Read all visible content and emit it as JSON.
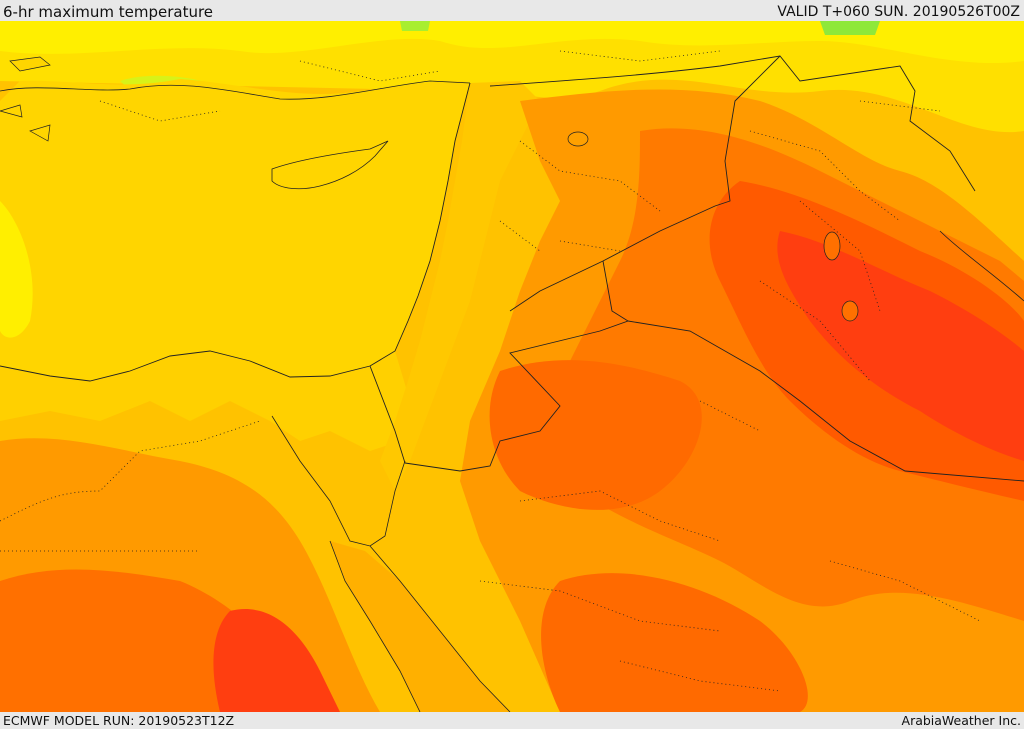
{
  "header": {
    "title": "6-hr maximum temperature",
    "valid": "VALID T+060 SUN. 20190526T00Z"
  },
  "footer": {
    "model_run": "ECMWF MODEL RUN: 20190523T12Z",
    "credit": "ArabiaWeather Inc."
  },
  "palette": {
    "sea": "#ffd500",
    "coast_cool": "#ffef00",
    "cool_green": "#c8f520",
    "warm_1": "#ffc200",
    "warm_2": "#ffaa00",
    "hot_1": "#ff8c00",
    "hot_2": "#ff6a00",
    "hot_3": "#ff4a10",
    "hot_4": "#ff2a10"
  }
}
